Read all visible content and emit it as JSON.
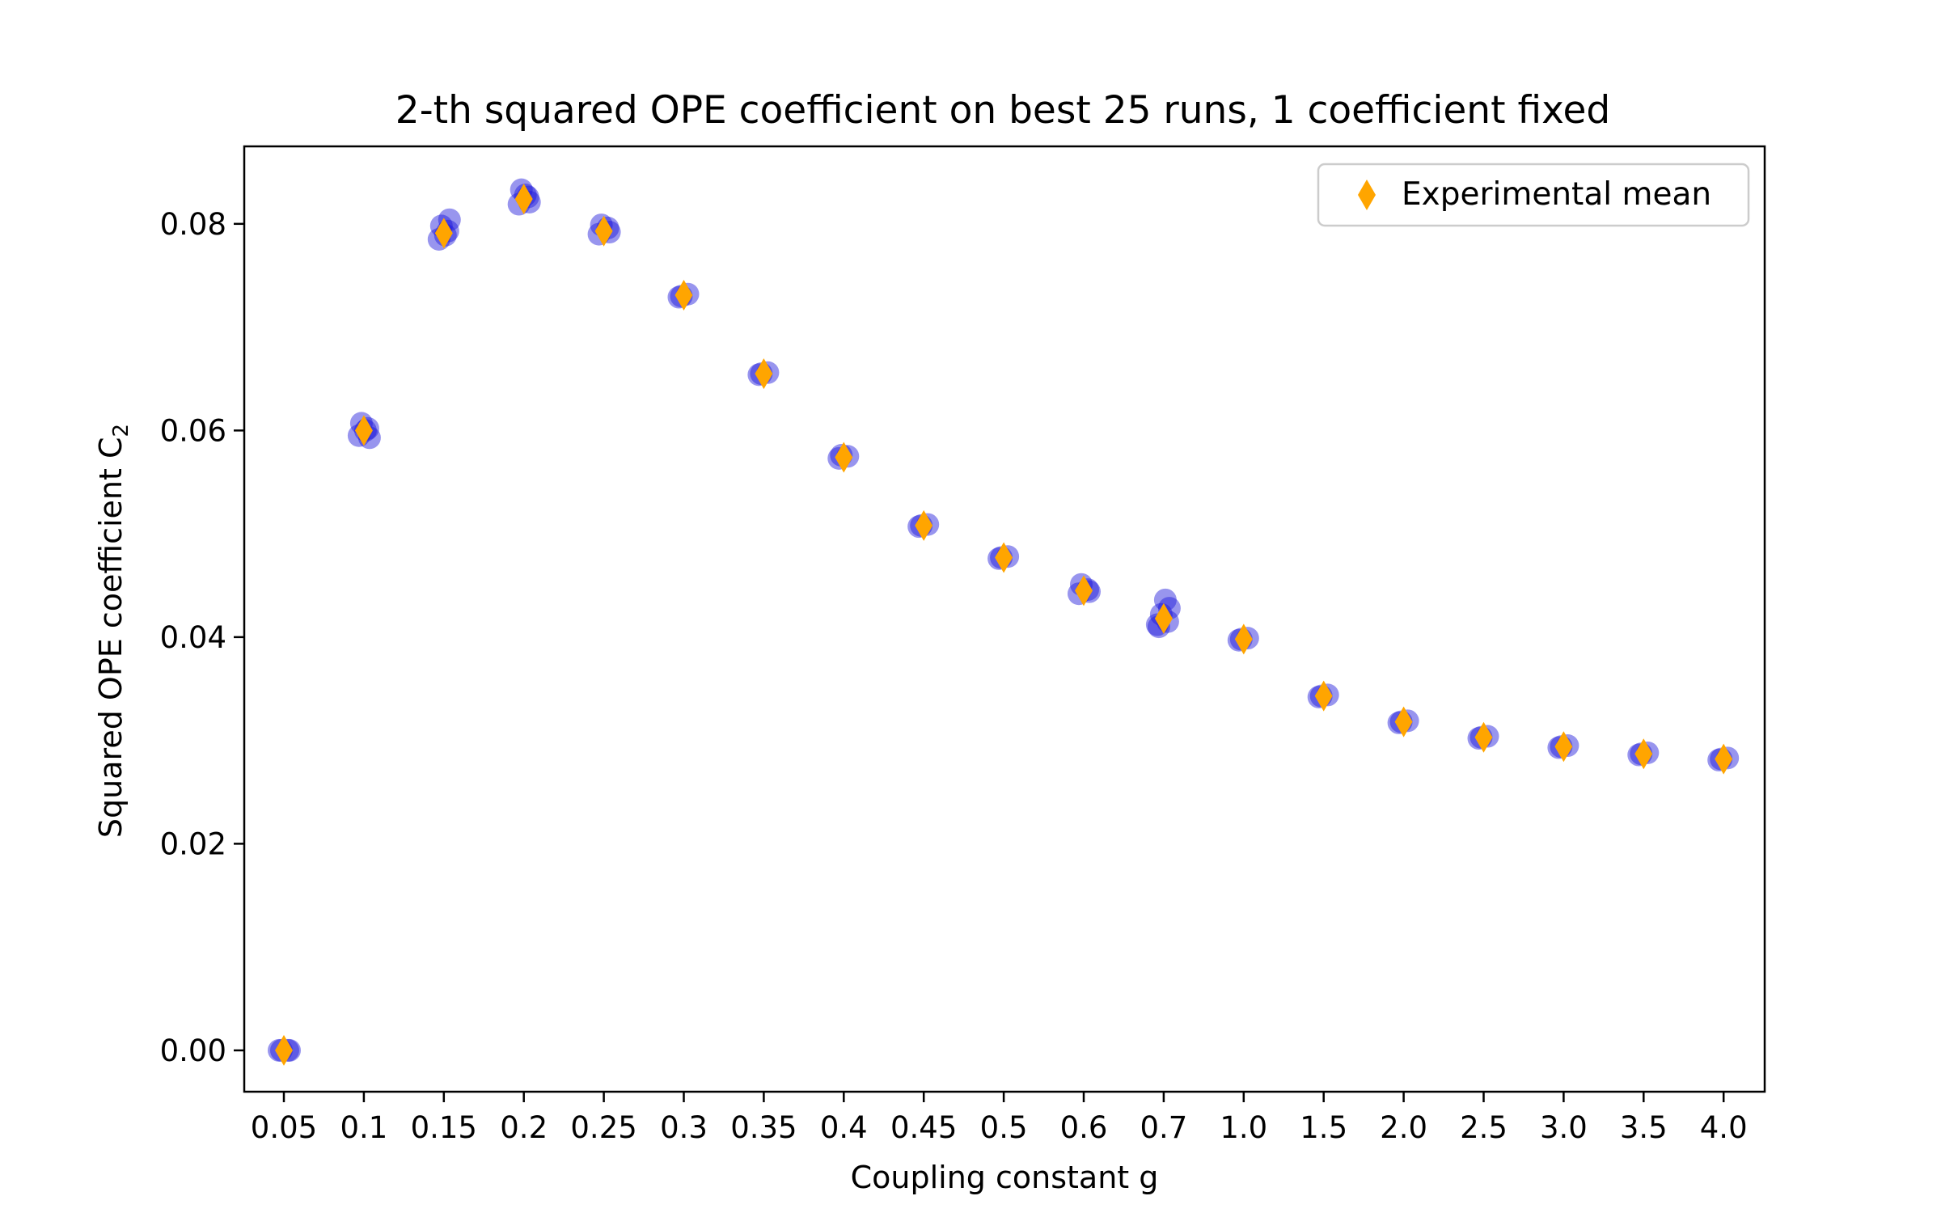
{
  "chart_data": {
    "type": "scatter",
    "title": "2-th squared OPE coefficient on best 25 runs, 1 coefficient fixed",
    "xlabel": "Coupling constant g",
    "ylabel": "Squared OPE coefficient C",
    "ylabel_subscript": "2",
    "categories": [
      "0.05",
      "0.1",
      "0.15",
      "0.2",
      "0.25",
      "0.3",
      "0.35",
      "0.4",
      "0.45",
      "0.5",
      "0.6",
      "0.7",
      "1.0",
      "1.5",
      "2.0",
      "2.5",
      "3.0",
      "3.5",
      "4.0"
    ],
    "y_ticks": [
      "0.00",
      "0.02",
      "0.04",
      "0.06",
      "0.08"
    ],
    "ylim": [
      -0.004,
      0.0875
    ],
    "grid": false,
    "legend_position": "top-right",
    "series": [
      {
        "name": "Experimental mean",
        "marker": "thin-diamond",
        "color": "#FFA500",
        "values": [
          0.0,
          0.06,
          0.0791,
          0.0824,
          0.0793,
          0.0731,
          0.0655,
          0.0574,
          0.0508,
          0.0477,
          0.0445,
          0.0418,
          0.0398,
          0.0343,
          0.0318,
          0.0303,
          0.0294,
          0.0287,
          0.0282
        ]
      }
    ],
    "runs": {
      "color": "#1a14d9",
      "values": [
        [
          0.0,
          0.0,
          0.0,
          0.0
        ],
        [
          0.0595,
          0.0602,
          0.0607,
          0.0593,
          0.06
        ],
        [
          0.0785,
          0.0793,
          0.0798,
          0.0804,
          0.0789
        ],
        [
          0.0819,
          0.0826,
          0.0833,
          0.0821,
          0.0828
        ],
        [
          0.079,
          0.0796,
          0.0799,
          0.0792
        ],
        [
          0.0729,
          0.0732,
          0.073
        ],
        [
          0.0654,
          0.0656,
          0.0655
        ],
        [
          0.0573,
          0.0575,
          0.0576
        ],
        [
          0.0507,
          0.0509,
          0.0508
        ],
        [
          0.0476,
          0.0478,
          0.0477
        ],
        [
          0.0442,
          0.0446,
          0.0451,
          0.0444
        ],
        [
          0.041,
          0.0415,
          0.0422,
          0.0428,
          0.0436,
          0.0412
        ],
        [
          0.0397,
          0.0399,
          0.0398
        ],
        [
          0.0342,
          0.0344,
          0.0343
        ],
        [
          0.0317,
          0.0319,
          0.0318
        ],
        [
          0.0302,
          0.0304,
          0.0303
        ],
        [
          0.0293,
          0.0295,
          0.0294
        ],
        [
          0.0286,
          0.0288,
          0.0287
        ],
        [
          0.0281,
          0.0283,
          0.0282
        ]
      ]
    }
  }
}
